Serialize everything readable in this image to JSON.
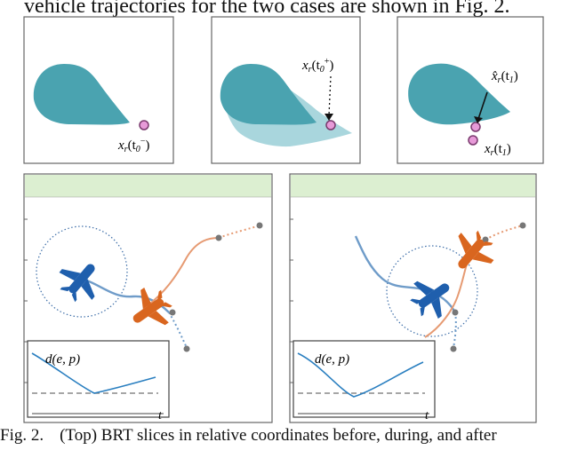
{
  "header_text": "vehicle trajectories for the two cases are shown in Fig. 2.",
  "caption": {
    "label": "Fig. 2.",
    "text": "(Top) BRT slices in relative coordinates before, during, and after"
  },
  "brt_panels": [
    {
      "label_main": "x",
      "label_sub": "r",
      "label_arg": "(t",
      "label_argsub": "0",
      "label_argsup": "−",
      "label_end": ")"
    },
    {
      "label_main": "x",
      "label_sub": "r",
      "label_arg": "(t",
      "label_argsub": "0",
      "label_argsup": "+",
      "label_end": ")"
    },
    {
      "hat_main": "x̂",
      "hat_sub": "r",
      "hat_arg": "(t",
      "hat_argsub": "1",
      "hat_end": ")",
      "label_main": "x",
      "label_sub": "r",
      "label_arg": "(t",
      "label_argsub": "1",
      "label_end": ")"
    }
  ],
  "inset_left": {
    "ylabel": "d(e, p)",
    "xlabel": "t"
  },
  "inset_right": {
    "ylabel": "d(e, p)",
    "xlabel": "t"
  },
  "colors": {
    "brt_fill": "#4aa3b0",
    "brt_light": "#a9d6dd",
    "marker": "#e79ad8",
    "green_bar": "#dcefd1",
    "blue_plane": "#1f5fad",
    "orange_plane": "#d9661f",
    "blue_path": "#6f9cc9",
    "orange_path": "#e69a72",
    "circle": "#3d6ea8",
    "curve": "#2a7fc0"
  }
}
